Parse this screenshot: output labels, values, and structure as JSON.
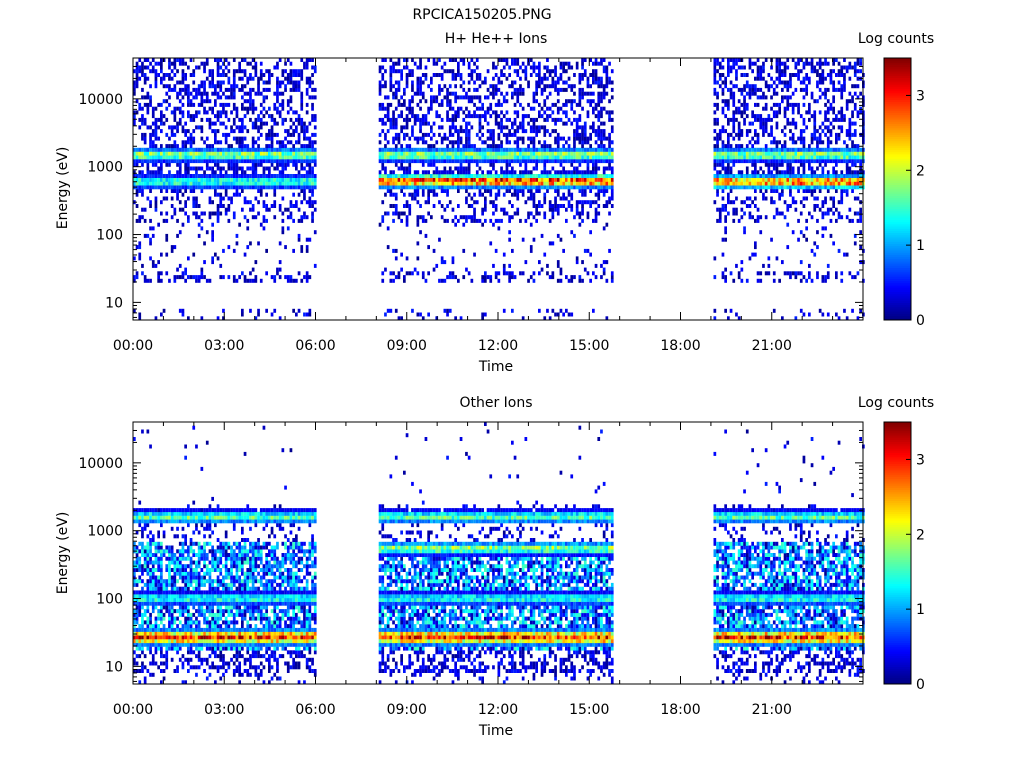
{
  "figure_title": "RPCICA150205.PNG",
  "chart_data": [
    {
      "type": "heatmap",
      "title": "H+ He++ Ions",
      "xlabel": "Time",
      "ylabel": "Energy (eV)",
      "colorbar_label": "Log counts",
      "x_tick_labels": [
        "00:00",
        "03:00",
        "06:00",
        "09:00",
        "12:00",
        "15:00",
        "18:00",
        "21:00"
      ],
      "x_range_hours": [
        0,
        24
      ],
      "y_scale": "log",
      "y_range": [
        5.5,
        40000
      ],
      "y_tick_values": [
        10,
        100,
        1000,
        10000
      ],
      "y_tick_labels": [
        "10",
        "100",
        "1000",
        "10000"
      ],
      "colorbar_range": [
        0,
        3.5
      ],
      "colorbar_tick_labels": [
        "0",
        "1",
        "2",
        "3"
      ],
      "data_gaps_hours": [
        [
          6.0,
          8.1
        ],
        [
          15.8,
          19.0
        ]
      ],
      "features": [
        {
          "energy_eV": 620,
          "time_hours": [
            8.1,
            15.8
          ],
          "log_counts": 2.9
        },
        {
          "energy_eV": 600,
          "time_hours": [
            19.0,
            24.0
          ],
          "log_counts": 2.7
        },
        {
          "energy_eV": 1500,
          "time_hours": [
            0.0,
            24.0
          ],
          "log_counts": 1.8
        },
        {
          "energy_eV": 600,
          "time_hours": [
            0.0,
            6.0
          ],
          "log_counts": 1.5
        }
      ]
    },
    {
      "type": "heatmap",
      "title": "Other Ions",
      "xlabel": "Time",
      "ylabel": "Energy (eV)",
      "colorbar_label": "Log counts",
      "x_tick_labels": [
        "00:00",
        "03:00",
        "06:00",
        "09:00",
        "12:00",
        "15:00",
        "18:00",
        "21:00"
      ],
      "x_range_hours": [
        0,
        24
      ],
      "y_scale": "log",
      "y_range": [
        5.5,
        40000
      ],
      "y_tick_values": [
        10,
        100,
        1000,
        10000
      ],
      "y_tick_labels": [
        "10",
        "100",
        "1000",
        "10000"
      ],
      "colorbar_range": [
        0,
        3.5
      ],
      "colorbar_tick_labels": [
        "0",
        "1",
        "2",
        "3"
      ],
      "data_gaps_hours": [
        [
          6.0,
          8.1
        ],
        [
          15.8,
          19.0
        ]
      ],
      "features": [
        {
          "energy_eV": 27,
          "time_hours": [
            0.0,
            24.0
          ],
          "log_counts": 3.0
        },
        {
          "energy_eV": 100,
          "time_hours": [
            0.0,
            24.0
          ],
          "log_counts": 1.4
        },
        {
          "energy_eV": 550,
          "time_hours": [
            8.1,
            15.8
          ],
          "log_counts": 1.8
        },
        {
          "energy_eV": 1600,
          "time_hours": [
            0.0,
            24.0
          ],
          "log_counts": 1.6
        }
      ]
    }
  ]
}
